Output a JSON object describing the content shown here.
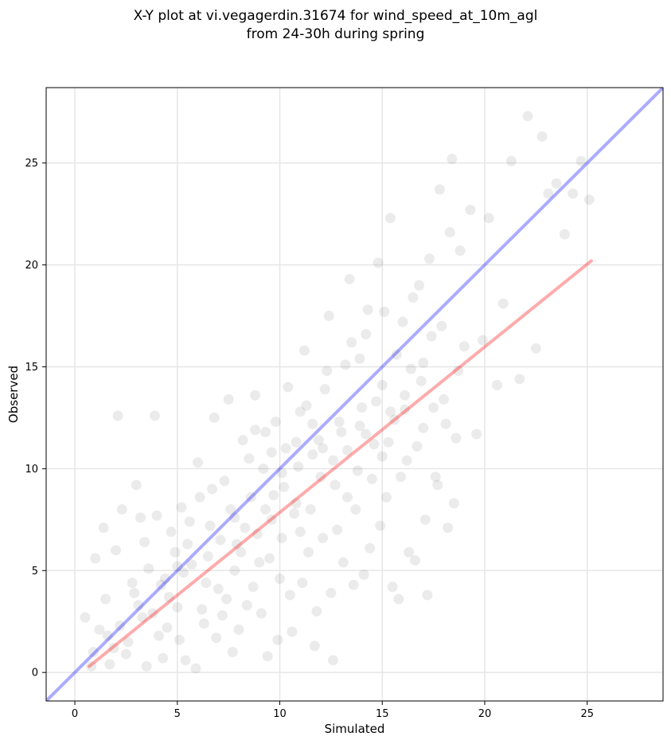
{
  "title": {
    "line1": "X-Y plot at vi.vegagerdin.31674 for wind_speed_at_10m_agl",
    "line2": "from 24-30h during spring"
  },
  "chart_data": {
    "type": "scatter",
    "title": "X-Y plot at vi.vegagerdin.31674 for wind_speed_at_10m_agl from 24-30h during spring",
    "xlabel": "Simulated",
    "ylabel": "Observed",
    "xlim": [
      -1.4,
      28.7
    ],
    "ylim": [
      -1.4,
      28.7
    ],
    "xticks": [
      0,
      5,
      10,
      15,
      20,
      25
    ],
    "yticks": [
      0,
      5,
      10,
      15,
      20,
      25
    ],
    "grid": true,
    "point_color": "#000000",
    "point_alpha": 0.08,
    "series": [
      {
        "type": "scatter",
        "points": [
          [
            0.8,
            0.3
          ],
          [
            1.2,
            2.1
          ],
          [
            1.5,
            3.6
          ],
          [
            1.9,
            1.2
          ],
          [
            2.1,
            12.6
          ],
          [
            2.5,
            0.9
          ],
          [
            2.8,
            4.4
          ],
          [
            3.0,
            9.2
          ],
          [
            3.3,
            2.7
          ],
          [
            3.6,
            5.1
          ],
          [
            3.9,
            12.6
          ],
          [
            4.1,
            1.8
          ],
          [
            4.4,
            4.6
          ],
          [
            4.7,
            6.9
          ],
          [
            5.0,
            3.2
          ],
          [
            5.2,
            8.1
          ],
          [
            5.4,
            0.6
          ],
          [
            5.7,
            5.3
          ],
          [
            6.0,
            10.3
          ],
          [
            6.3,
            2.4
          ],
          [
            6.6,
            7.2
          ],
          [
            6.8,
            12.5
          ],
          [
            7.0,
            4.1
          ],
          [
            7.3,
            9.4
          ],
          [
            7.5,
            13.4
          ],
          [
            7.7,
            1.0
          ],
          [
            7.9,
            6.3
          ],
          [
            8.2,
            11.4
          ],
          [
            8.4,
            3.3
          ],
          [
            8.6,
            8.6
          ],
          [
            8.8,
            13.6
          ],
          [
            9.0,
            5.4
          ],
          [
            9.2,
            10.0
          ],
          [
            9.4,
            0.8
          ],
          [
            9.6,
            7.5
          ],
          [
            9.8,
            12.3
          ],
          [
            10.0,
            4.6
          ],
          [
            10.2,
            9.1
          ],
          [
            10.4,
            14.0
          ],
          [
            10.6,
            2.0
          ],
          [
            10.8,
            8.3
          ],
          [
            11.0,
            12.8
          ],
          [
            11.2,
            15.8
          ],
          [
            11.4,
            5.9
          ],
          [
            11.6,
            10.7
          ],
          [
            11.8,
            3.0
          ],
          [
            12.0,
            9.6
          ],
          [
            12.2,
            13.9
          ],
          [
            12.4,
            17.5
          ],
          [
            12.6,
            0.6
          ],
          [
            12.8,
            7.0
          ],
          [
            13.0,
            11.8
          ],
          [
            13.2,
            15.1
          ],
          [
            13.4,
            19.3
          ],
          [
            13.6,
            4.3
          ],
          [
            13.8,
            9.9
          ],
          [
            14.0,
            13.0
          ],
          [
            14.2,
            16.6
          ],
          [
            14.4,
            6.1
          ],
          [
            14.6,
            11.2
          ],
          [
            14.8,
            20.1
          ],
          [
            15.0,
            14.1
          ],
          [
            15.2,
            8.6
          ],
          [
            15.4,
            22.3
          ],
          [
            15.6,
            12.4
          ],
          [
            15.8,
            3.6
          ],
          [
            16.0,
            17.2
          ],
          [
            16.2,
            10.4
          ],
          [
            16.4,
            14.9
          ],
          [
            16.6,
            5.5
          ],
          [
            16.8,
            19.0
          ],
          [
            17.0,
            12.0
          ],
          [
            17.2,
            3.8
          ],
          [
            17.4,
            16.5
          ],
          [
            17.6,
            9.6
          ],
          [
            17.8,
            23.7
          ],
          [
            18.0,
            13.4
          ],
          [
            18.2,
            7.1
          ],
          [
            18.4,
            25.2
          ],
          [
            18.6,
            11.5
          ],
          [
            18.8,
            20.7
          ],
          [
            19.0,
            16.0
          ],
          [
            19.3,
            22.7
          ],
          [
            19.6,
            11.7
          ],
          [
            19.9,
            16.3
          ],
          [
            20.2,
            22.3
          ],
          [
            20.6,
            14.1
          ],
          [
            20.9,
            18.1
          ],
          [
            21.3,
            25.1
          ],
          [
            21.7,
            14.4
          ],
          [
            22.1,
            27.3
          ],
          [
            22.5,
            15.9
          ],
          [
            22.8,
            26.3
          ],
          [
            23.1,
            23.5
          ],
          [
            23.5,
            24.0
          ],
          [
            23.9,
            21.5
          ],
          [
            24.3,
            23.5
          ],
          [
            24.7,
            25.1
          ],
          [
            25.1,
            23.2
          ],
          [
            0.5,
            2.7
          ],
          [
            1.0,
            5.6
          ],
          [
            1.4,
            7.1
          ],
          [
            1.7,
            0.4
          ],
          [
            2.0,
            6.0
          ],
          [
            2.3,
            8.0
          ],
          [
            2.6,
            1.5
          ],
          [
            2.9,
            3.9
          ],
          [
            3.2,
            7.6
          ],
          [
            3.5,
            0.3
          ],
          [
            3.8,
            2.9
          ],
          [
            4.0,
            7.7
          ],
          [
            4.3,
            0.7
          ],
          [
            4.6,
            3.7
          ],
          [
            4.9,
            5.9
          ],
          [
            5.1,
            1.6
          ],
          [
            5.3,
            4.9
          ],
          [
            5.6,
            7.4
          ],
          [
            5.9,
            0.2
          ],
          [
            6.2,
            3.1
          ],
          [
            6.5,
            5.7
          ],
          [
            6.7,
            9.0
          ],
          [
            6.9,
            1.7
          ],
          [
            7.1,
            6.5
          ],
          [
            7.4,
            3.6
          ],
          [
            7.6,
            8.0
          ],
          [
            7.8,
            5.0
          ],
          [
            8.0,
            2.1
          ],
          [
            8.3,
            7.1
          ],
          [
            8.5,
            10.5
          ],
          [
            8.7,
            4.2
          ],
          [
            8.9,
            6.8
          ],
          [
            9.1,
            2.9
          ],
          [
            9.3,
            11.8
          ],
          [
            9.5,
            5.6
          ],
          [
            9.7,
            8.7
          ],
          [
            9.9,
            1.6
          ],
          [
            10.1,
            6.6
          ],
          [
            10.3,
            11.0
          ],
          [
            10.5,
            3.8
          ],
          [
            10.7,
            7.8
          ],
          [
            10.9,
            10.1
          ],
          [
            11.1,
            4.4
          ],
          [
            11.3,
            13.1
          ],
          [
            11.5,
            8.0
          ],
          [
            11.7,
            1.3
          ],
          [
            11.9,
            11.4
          ],
          [
            12.1,
            6.6
          ],
          [
            12.3,
            14.8
          ],
          [
            12.5,
            3.9
          ],
          [
            12.7,
            9.2
          ],
          [
            12.9,
            12.3
          ],
          [
            13.1,
            5.4
          ],
          [
            13.3,
            10.9
          ],
          [
            13.5,
            16.2
          ],
          [
            13.7,
            8.0
          ],
          [
            13.9,
            12.1
          ],
          [
            14.1,
            4.8
          ],
          [
            14.3,
            17.8
          ],
          [
            14.5,
            9.5
          ],
          [
            14.7,
            13.3
          ],
          [
            14.9,
            7.2
          ],
          [
            15.1,
            17.7
          ],
          [
            15.3,
            11.3
          ],
          [
            15.5,
            4.2
          ],
          [
            15.7,
            15.6
          ],
          [
            15.9,
            9.6
          ],
          [
            16.1,
            12.9
          ],
          [
            16.3,
            5.9
          ],
          [
            16.5,
            18.4
          ],
          [
            16.7,
            11.1
          ],
          [
            16.9,
            14.3
          ],
          [
            17.1,
            7.5
          ],
          [
            17.3,
            20.3
          ],
          [
            17.5,
            13.0
          ],
          [
            17.7,
            9.2
          ],
          [
            17.9,
            17.0
          ],
          [
            18.1,
            12.2
          ],
          [
            18.3,
            21.6
          ],
          [
            18.5,
            8.3
          ],
          [
            18.7,
            14.8
          ],
          [
            3.4,
            6.4
          ],
          [
            4.5,
            2.2
          ],
          [
            5.5,
            6.3
          ],
          [
            6.4,
            4.4
          ],
          [
            7.2,
            2.8
          ],
          [
            8.1,
            5.9
          ],
          [
            9.3,
            8.0
          ],
          [
            10.1,
            9.8
          ],
          [
            11.0,
            6.9
          ],
          [
            12.1,
            11.0
          ],
          [
            13.3,
            8.6
          ],
          [
            14.2,
            11.7
          ],
          [
            15.0,
            10.6
          ],
          [
            16.1,
            13.6
          ],
          [
            17.0,
            15.2
          ],
          [
            6.1,
            8.6
          ],
          [
            5.0,
            5.2
          ],
          [
            4.2,
            4.3
          ],
          [
            7.8,
            7.6
          ],
          [
            9.6,
            10.8
          ],
          [
            11.6,
            12.2
          ],
          [
            8.8,
            11.9
          ],
          [
            10.8,
            11.3
          ],
          [
            12.6,
            10.4
          ],
          [
            2.2,
            2.3
          ],
          [
            3.1,
            3.3
          ],
          [
            1.6,
            1.8
          ],
          [
            0.9,
            1.0
          ],
          [
            13.9,
            15.4
          ],
          [
            15.4,
            12.8
          ]
        ]
      }
    ],
    "reference_lines": [
      {
        "name": "1:1",
        "color": "#0000ff",
        "x": [
          -1.4,
          28.7
        ],
        "y": [
          -1.4,
          28.7
        ]
      },
      {
        "name": "fit",
        "color": "#ff0000",
        "x": [
          0.7,
          25.2
        ],
        "y": [
          0.3,
          20.2
        ]
      }
    ]
  }
}
